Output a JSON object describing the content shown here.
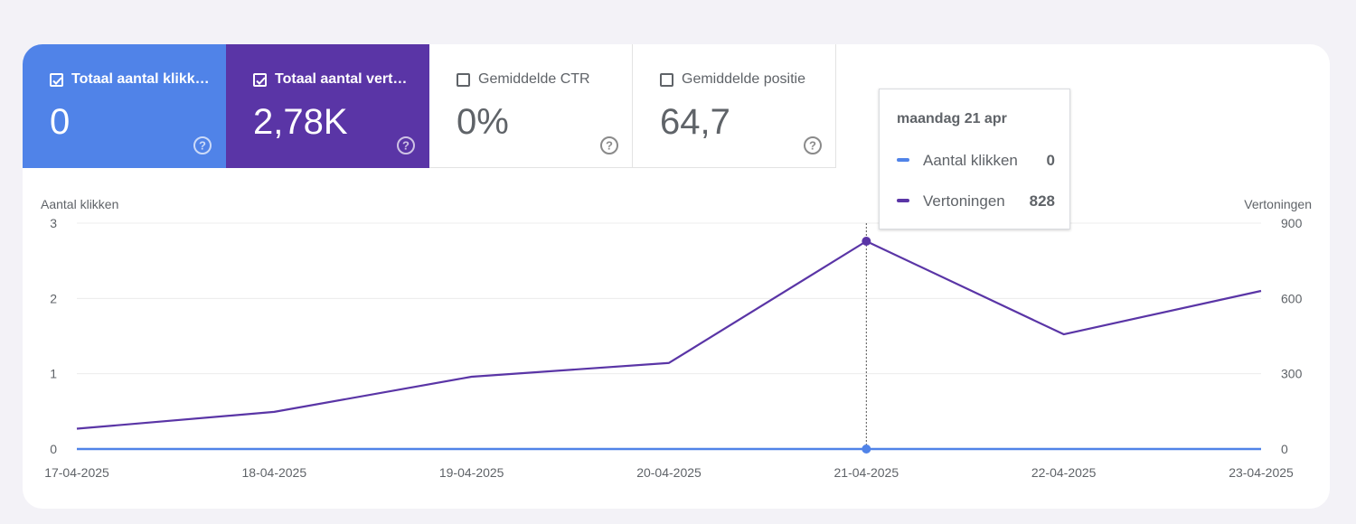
{
  "metrics": [
    {
      "id": "clicks",
      "label": "Totaal aantal klikk…",
      "value": "0",
      "checked": true
    },
    {
      "id": "impressions",
      "label": "Totaal aantal vert…",
      "value": "2,78K",
      "checked": true
    },
    {
      "id": "ctr",
      "label": "Gemiddelde CTR",
      "value": "0%",
      "checked": false
    },
    {
      "id": "position",
      "label": "Gemiddelde positie",
      "value": "64,7",
      "checked": false
    }
  ],
  "tooltip": {
    "title": "maandag 21 apr",
    "rows": [
      {
        "name": "Aantal klikken",
        "value": "0",
        "color": "#5083e8"
      },
      {
        "name": "Vertoningen",
        "value": "828",
        "color": "#5a35a6"
      }
    ]
  },
  "chart_data": {
    "type": "line",
    "x": [
      "17-04-2025",
      "18-04-2025",
      "19-04-2025",
      "20-04-2025",
      "21-04-2025",
      "22-04-2025",
      "23-04-2025"
    ],
    "ylabel_left": "Aantal klikken",
    "ylabel_right": "Vertoningen",
    "yticks_left": [
      "0",
      "1",
      "2",
      "3"
    ],
    "yticks_right": [
      "0",
      "300",
      "600",
      "900"
    ],
    "ylim_left": [
      0,
      3
    ],
    "ylim_right": [
      0,
      900
    ],
    "series": [
      {
        "name": "Aantal klikken",
        "axis": "left",
        "color": "#5083e8",
        "values": [
          0,
          0,
          0,
          0,
          0,
          0,
          0
        ]
      },
      {
        "name": "Vertoningen",
        "axis": "right",
        "color": "#5a35a6",
        "values": [
          81,
          148,
          288,
          343,
          828,
          457,
          630
        ]
      }
    ],
    "highlight_index": 4,
    "grid": true
  }
}
